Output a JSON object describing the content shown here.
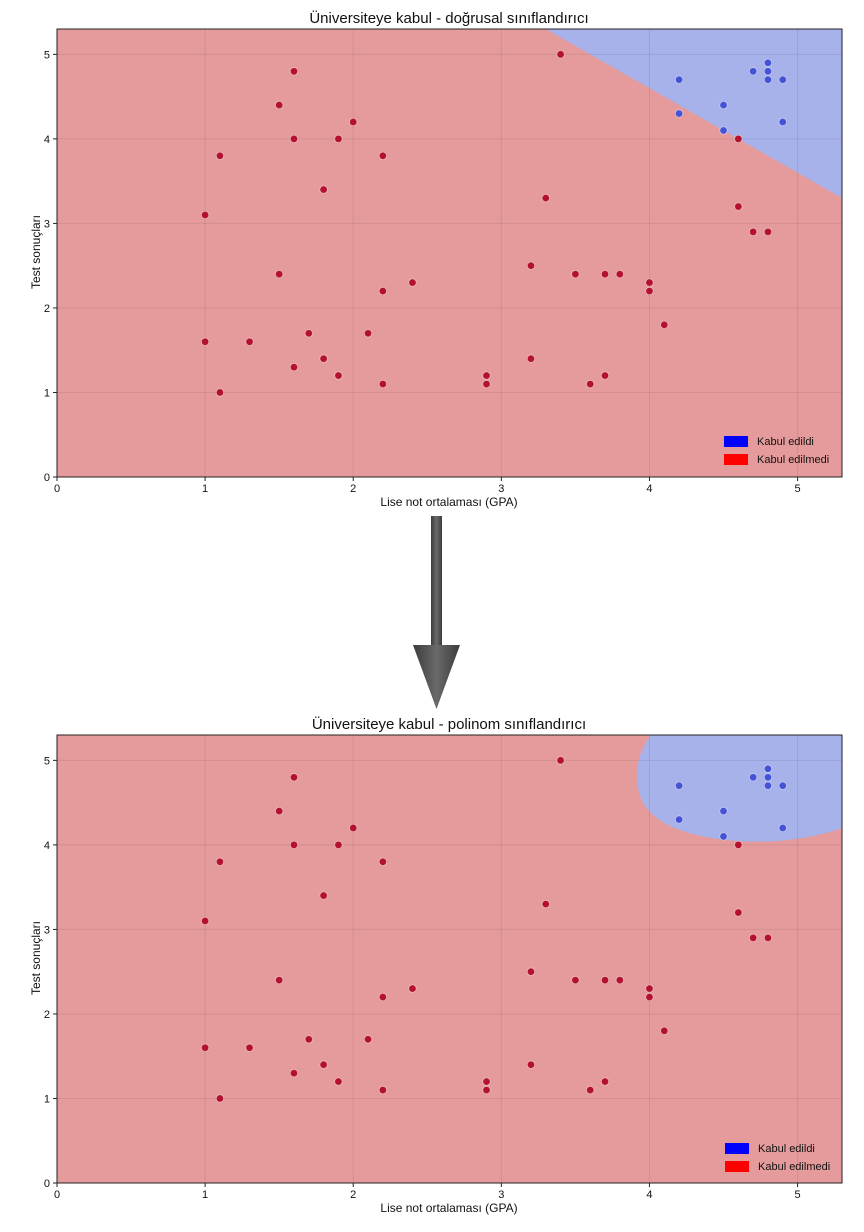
{
  "chart_data": [
    {
      "type": "scatter",
      "title": "Üniversiteye kabul - doğrusal sınıflandırıcı",
      "xlabel": "Lise not ortalaması (GPA)",
      "ylabel": "Test sonuçları",
      "xlim": [
        0,
        5.3
      ],
      "ylim": [
        0,
        5.3
      ],
      "xticks": [
        "0",
        "1",
        "2",
        "3",
        "4",
        "5"
      ],
      "yticks": [
        "0",
        "1",
        "2",
        "3",
        "4",
        "5"
      ],
      "grid": true,
      "legend_position": "bottom-right",
      "decision_boundary": "linear",
      "series": [
        {
          "name": "Kabul edildi",
          "color": "#0000ff",
          "points": [
            [
              4.2,
              4.7
            ],
            [
              4.2,
              4.3
            ],
            [
              4.5,
              4.4
            ],
            [
              4.5,
              4.1
            ],
            [
              4.7,
              4.8
            ],
            [
              4.8,
              4.9
            ],
            [
              4.8,
              4.8
            ],
            [
              4.8,
              4.7
            ],
            [
              4.9,
              4.7
            ],
            [
              4.9,
              4.2
            ]
          ]
        },
        {
          "name": "Kabul edilmedi",
          "color": "#ff0000",
          "points": [
            [
              1.0,
              3.1
            ],
            [
              1.0,
              1.6
            ],
            [
              1.1,
              3.8
            ],
            [
              1.1,
              1.0
            ],
            [
              1.3,
              1.6
            ],
            [
              1.5,
              4.4
            ],
            [
              1.5,
              2.4
            ],
            [
              1.6,
              4.8
            ],
            [
              1.6,
              4.0
            ],
            [
              1.6,
              1.3
            ],
            [
              1.7,
              1.7
            ],
            [
              1.8,
              3.4
            ],
            [
              1.8,
              1.4
            ],
            [
              1.9,
              4.0
            ],
            [
              1.9,
              1.2
            ],
            [
              2.0,
              4.2
            ],
            [
              2.1,
              1.7
            ],
            [
              2.2,
              3.8
            ],
            [
              2.2,
              2.2
            ],
            [
              2.2,
              1.1
            ],
            [
              2.4,
              2.3
            ],
            [
              2.9,
              1.2
            ],
            [
              2.9,
              1.1
            ],
            [
              3.2,
              2.5
            ],
            [
              3.2,
              1.4
            ],
            [
              3.3,
              3.3
            ],
            [
              3.4,
              5.0
            ],
            [
              3.5,
              2.4
            ],
            [
              3.6,
              1.1
            ],
            [
              3.7,
              2.4
            ],
            [
              3.7,
              1.2
            ],
            [
              3.8,
              2.4
            ],
            [
              4.0,
              2.3
            ],
            [
              4.0,
              2.2
            ],
            [
              4.1,
              1.8
            ],
            [
              4.6,
              4.0
            ],
            [
              4.6,
              3.2
            ],
            [
              4.7,
              2.9
            ],
            [
              4.8,
              2.9
            ]
          ]
        }
      ]
    },
    {
      "type": "scatter",
      "title": "Üniversiteye kabul - polinom sınıflandırıcı",
      "xlabel": "Lise not ortalaması (GPA)",
      "ylabel": "Test sonuçları",
      "xlim": [
        0,
        5.3
      ],
      "ylim": [
        0,
        5.3
      ],
      "xticks": [
        "0",
        "1",
        "2",
        "3",
        "4",
        "5"
      ],
      "yticks": [
        "0",
        "1",
        "2",
        "3",
        "4",
        "5"
      ],
      "grid": true,
      "legend_position": "bottom-right",
      "decision_boundary": "polynomial",
      "series": [
        {
          "name": "Kabul edildi",
          "color": "#0000ff",
          "points": [
            [
              4.2,
              4.7
            ],
            [
              4.2,
              4.3
            ],
            [
              4.5,
              4.4
            ],
            [
              4.5,
              4.1
            ],
            [
              4.7,
              4.8
            ],
            [
              4.8,
              4.9
            ],
            [
              4.8,
              4.8
            ],
            [
              4.8,
              4.7
            ],
            [
              4.9,
              4.7
            ],
            [
              4.9,
              4.2
            ]
          ]
        },
        {
          "name": "Kabul edilmedi",
          "color": "#ff0000",
          "points": [
            [
              1.0,
              3.1
            ],
            [
              1.0,
              1.6
            ],
            [
              1.1,
              3.8
            ],
            [
              1.1,
              1.0
            ],
            [
              1.3,
              1.6
            ],
            [
              1.5,
              4.4
            ],
            [
              1.5,
              2.4
            ],
            [
              1.6,
              4.8
            ],
            [
              1.6,
              4.0
            ],
            [
              1.6,
              1.3
            ],
            [
              1.7,
              1.7
            ],
            [
              1.8,
              3.4
            ],
            [
              1.8,
              1.4
            ],
            [
              1.9,
              4.0
            ],
            [
              1.9,
              1.2
            ],
            [
              2.0,
              4.2
            ],
            [
              2.1,
              1.7
            ],
            [
              2.2,
              3.8
            ],
            [
              2.2,
              2.2
            ],
            [
              2.2,
              1.1
            ],
            [
              2.4,
              2.3
            ],
            [
              2.9,
              1.2
            ],
            [
              2.9,
              1.1
            ],
            [
              3.2,
              2.5
            ],
            [
              3.2,
              1.4
            ],
            [
              3.3,
              3.3
            ],
            [
              3.4,
              5.0
            ],
            [
              3.5,
              2.4
            ],
            [
              3.6,
              1.1
            ],
            [
              3.7,
              2.4
            ],
            [
              3.7,
              1.2
            ],
            [
              3.8,
              2.4
            ],
            [
              4.0,
              2.3
            ],
            [
              4.0,
              2.2
            ],
            [
              4.1,
              1.8
            ],
            [
              4.6,
              4.0
            ],
            [
              4.6,
              3.2
            ],
            [
              4.7,
              2.9
            ],
            [
              4.8,
              2.9
            ]
          ]
        }
      ]
    }
  ],
  "colors": {
    "reject_region": "#e59b9b",
    "accept_region": "#a7b1ea",
    "accept_point": "#4452d6",
    "reject_point": "#b4112e",
    "arrow": "#555555"
  }
}
